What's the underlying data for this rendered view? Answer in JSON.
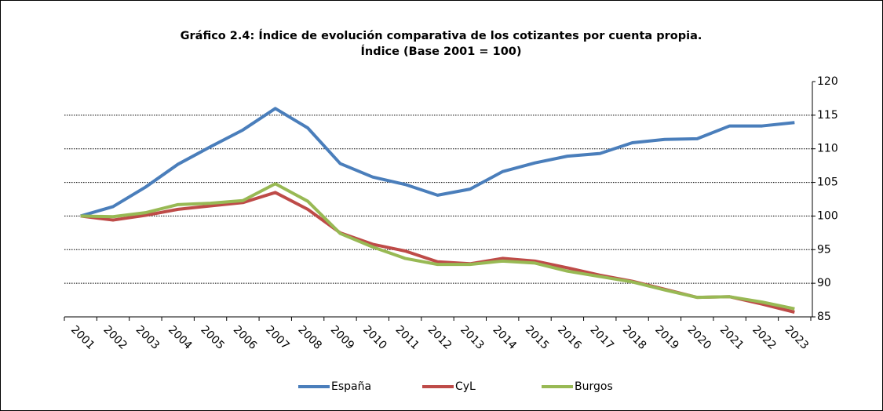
{
  "chart_data": {
    "type": "line",
    "title": "Gráfico 2.4: Índice de evolución comparativa de los cotizantes por cuenta propia.",
    "subtitle": "Índice (Base 2001 = 100)",
    "categories": [
      "2001",
      "2002",
      "2003",
      "2004",
      "2005",
      "2006",
      "2007",
      "2008",
      "2009",
      "2010",
      "2011",
      "2012",
      "2013",
      "2014",
      "2015",
      "2016",
      "2017",
      "2018",
      "2019",
      "2020",
      "2021",
      "2022",
      "2023"
    ],
    "series": [
      {
        "name": "España",
        "color": "#4a7ebb",
        "values": [
          100,
          101.4,
          104.3,
          107.7,
          110.3,
          112.8,
          116.0,
          113.1,
          107.8,
          105.8,
          104.7,
          103.1,
          104.0,
          106.6,
          107.9,
          108.9,
          109.3,
          110.9,
          111.4,
          111.5,
          113.4,
          113.4,
          113.9
        ]
      },
      {
        "name": "CyL",
        "color": "#be4b48",
        "values": [
          100,
          99.4,
          100.1,
          101.0,
          101.5,
          102.0,
          103.5,
          101.0,
          97.5,
          95.8,
          94.8,
          93.2,
          92.9,
          93.7,
          93.3,
          92.3,
          91.2,
          90.3,
          89.1,
          87.9,
          88.0,
          86.9,
          85.7
        ]
      },
      {
        "name": "Burgos",
        "color": "#98b954",
        "values": [
          100,
          99.9,
          100.5,
          101.7,
          101.9,
          102.3,
          104.8,
          102.2,
          97.4,
          95.4,
          93.7,
          92.8,
          92.8,
          93.3,
          93.0,
          91.8,
          91.0,
          90.2,
          89.0,
          87.9,
          88.0,
          87.2,
          86.2
        ]
      }
    ],
    "ylim": [
      85,
      120
    ],
    "yticks": [
      85,
      90,
      95,
      100,
      105,
      110,
      115,
      120
    ],
    "grid": true,
    "y_axis_side": "right",
    "legend": "bottom"
  }
}
